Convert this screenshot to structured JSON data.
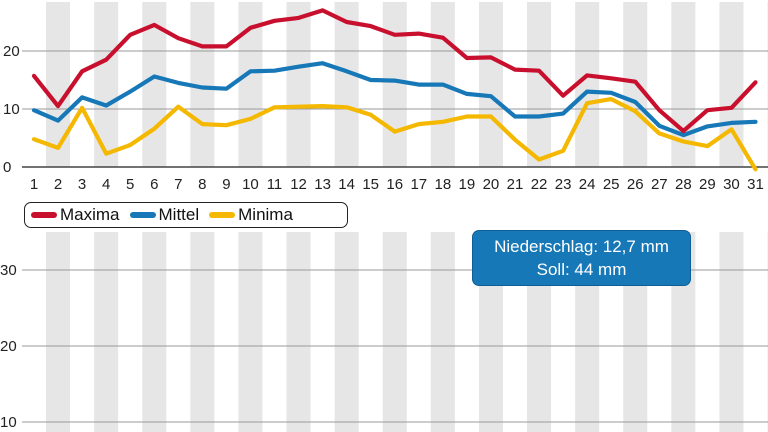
{
  "legend": {
    "max_label": "Maxima",
    "mid_label": "Mittel",
    "min_label": "Minima"
  },
  "precipitation": {
    "line1": "Niederschlag: 12,7 mm",
    "line2": "Soll: 44 mm"
  },
  "colors": {
    "max": "#c8102e",
    "mid": "#1778b8",
    "min": "#f5b800",
    "stripe": "#e6e6e6"
  },
  "chart_data": [
    {
      "type": "line",
      "title": "",
      "xlabel": "",
      "ylabel": "",
      "x": [
        1,
        2,
        3,
        4,
        5,
        6,
        7,
        8,
        9,
        10,
        11,
        12,
        13,
        14,
        15,
        16,
        17,
        18,
        19,
        20,
        21,
        22,
        23,
        24,
        25,
        26,
        27,
        28,
        29,
        30,
        31
      ],
      "ylim": [
        0,
        27
      ],
      "yticks": [
        0,
        10,
        20
      ],
      "series": [
        {
          "name": "Maxima",
          "color": "#c8102e",
          "values": [
            15.7,
            10.5,
            16.5,
            18.5,
            22.8,
            24.5,
            22.2,
            20.8,
            20.8,
            24,
            25.2,
            25.7,
            27,
            25,
            24.3,
            22.8,
            23,
            22.3,
            18.8,
            18.9,
            16.8,
            16.6,
            12.3,
            15.8,
            15.3,
            14.7,
            9.8,
            6.2,
            9.8,
            10.2,
            14.6
          ]
        },
        {
          "name": "Mittel",
          "color": "#1778b8",
          "values": [
            9.8,
            8,
            12,
            10.6,
            13,
            15.6,
            14.5,
            13.7,
            13.5,
            16.5,
            16.6,
            17.3,
            17.9,
            16.5,
            15,
            14.9,
            14.2,
            14.2,
            12.6,
            12.2,
            8.7,
            8.7,
            9.2,
            13,
            12.8,
            11.2,
            7.1,
            5.5,
            7,
            7.6,
            7.8
          ]
        },
        {
          "name": "Minima",
          "color": "#f5b800",
          "values": [
            4.8,
            3.3,
            10.2,
            2.3,
            3.8,
            6.6,
            10.4,
            7.4,
            7.2,
            8.3,
            10.3,
            10.4,
            10.5,
            10.3,
            9,
            6.1,
            7.4,
            7.8,
            8.7,
            8.7,
            4.7,
            1.3,
            2.8,
            11,
            11.7,
            9.6,
            5.8,
            4.4,
            3.6,
            6.5,
            -0.4
          ]
        }
      ]
    },
    {
      "type": "line",
      "title": "",
      "xlabel": "",
      "ylabel": "",
      "x": [
        1,
        2,
        3,
        4,
        5,
        6,
        7,
        8,
        9,
        10,
        11,
        12,
        13,
        14,
        15,
        16,
        17,
        18,
        19,
        20,
        21,
        22,
        23,
        24,
        25,
        26,
        27,
        28,
        29,
        30,
        31
      ],
      "ylim": [
        10,
        32
      ],
      "yticks": [
        10,
        20,
        30
      ],
      "series": []
    }
  ]
}
